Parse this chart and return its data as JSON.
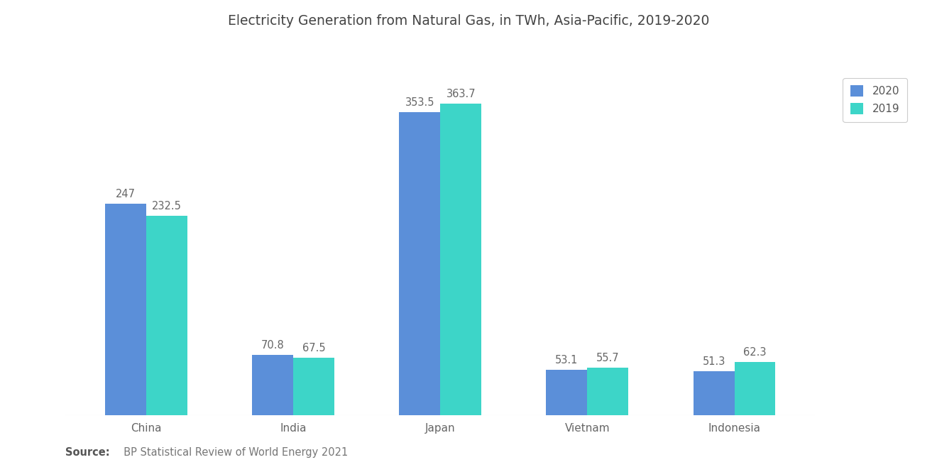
{
  "title": "Electricity Generation from Natural Gas, in TWh, Asia-Pacific, 2019-2020",
  "categories": [
    "China",
    "India",
    "Japan",
    "Vietnam",
    "Indonesia"
  ],
  "values_2020": [
    247,
    70.8,
    353.5,
    53.1,
    51.3
  ],
  "values_2019": [
    232.5,
    67.5,
    363.7,
    55.7,
    62.3
  ],
  "color_2020": "#5B8FD9",
  "color_2019": "#3DD5C8",
  "background_color": "#ffffff",
  "source_bold": "Source:",
  "source_rest": "  BP Statistical Review of World Energy 2021",
  "legend_2020": "2020",
  "legend_2019": "2019",
  "bar_width": 0.28,
  "title_fontsize": 13.5,
  "label_fontsize": 11,
  "tick_fontsize": 11,
  "source_fontsize": 10.5,
  "value_fontsize": 10.5
}
